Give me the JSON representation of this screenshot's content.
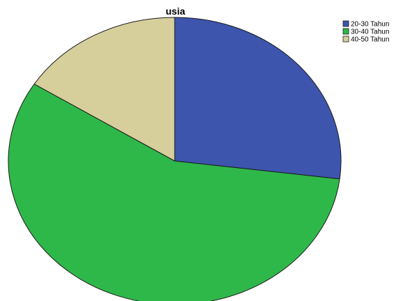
{
  "chart_data": {
    "type": "pie",
    "title": "usia",
    "categories": [
      "20-30 Tahun",
      "30-40 Tahun",
      "40-50 Tahun"
    ],
    "values": [
      27,
      57,
      16
    ],
    "colors": [
      "#3d55ad",
      "#2fb84a",
      "#d6cf9c"
    ],
    "legend_position": "top-right",
    "start_angle_deg": 0,
    "direction": "clockwise"
  }
}
